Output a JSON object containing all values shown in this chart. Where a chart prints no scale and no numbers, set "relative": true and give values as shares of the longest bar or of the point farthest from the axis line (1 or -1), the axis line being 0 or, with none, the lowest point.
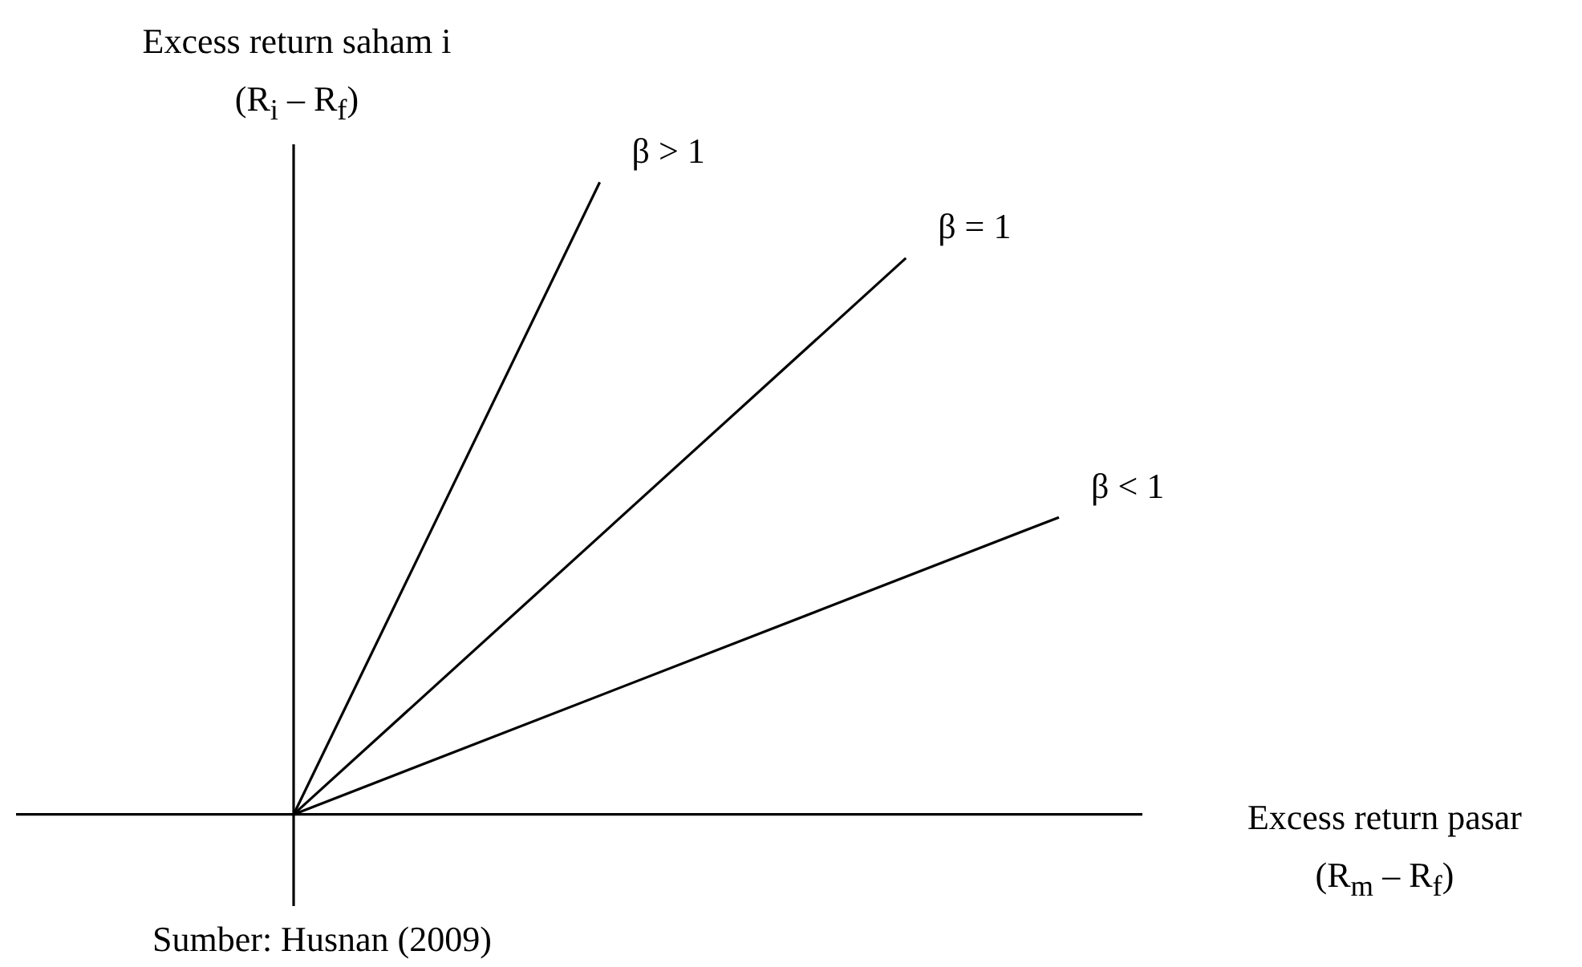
{
  "chart_data": {
    "type": "line",
    "relative": true,
    "ylabel": "Excess return saham i\n(R$_{i}$ – R$_{f}$)",
    "xlabel": "Excess return pasar\n(R$_{m}$ – R$_{f}$)",
    "annotations": [
      "Sumber: Husnan (2009)"
    ],
    "legend": false,
    "marker": "none",
    "line_style": "solid",
    "categories": [
      null,
      null,
      null,
      null,
      null,
      null
    ],
    "series": [
      {
        "name": "β > 1",
        "color": "#000000",
        "values": [
          0,
          null,
          1,
          null,
          null,
          null
        ]
      },
      {
        "name": "β = 1",
        "color": "#000000",
        "values": [
          0,
          null,
          null,
          null,
          0.88,
          null
        ]
      },
      {
        "name": "β < 1",
        "color": "#000000",
        "values": [
          0,
          null,
          null,
          null,
          null,
          0.47
        ]
      }
    ]
  }
}
